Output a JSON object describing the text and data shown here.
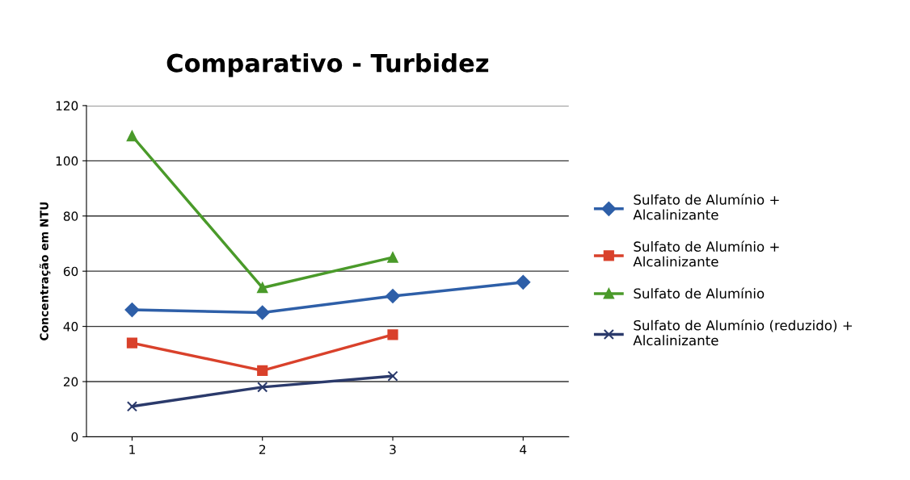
{
  "chart_data": {
    "type": "line",
    "title": "Comparativo - Turbidez",
    "ylabel": "Concentração em NTU",
    "categories": [
      "1",
      "2",
      "3",
      "4"
    ],
    "series": [
      {
        "name": "Sulfato de Alumínio +\nAlcalinizante",
        "color": "#2e5fa8",
        "marker": "diamond",
        "values": [
          46,
          45,
          51,
          56
        ]
      },
      {
        "name": "Sulfato de Alumínio +\nAlcalinizante",
        "color": "#d9412b",
        "marker": "square",
        "values": [
          34,
          24,
          37,
          null
        ]
      },
      {
        "name": "Sulfato de Alumínio",
        "color": "#4a9a2a",
        "marker": "triangle",
        "values": [
          109,
          54,
          65,
          null
        ]
      },
      {
        "name": "Sulfato de Alumínio (reduzido) +\nAlcalinizante",
        "color": "#2b3a6b",
        "marker": "cross",
        "values": [
          11,
          18,
          22,
          null
        ]
      }
    ],
    "ylim": [
      0,
      120
    ],
    "yticks": [
      0,
      20,
      40,
      60,
      80,
      100,
      120
    ],
    "grid": "y",
    "legend": "right"
  }
}
